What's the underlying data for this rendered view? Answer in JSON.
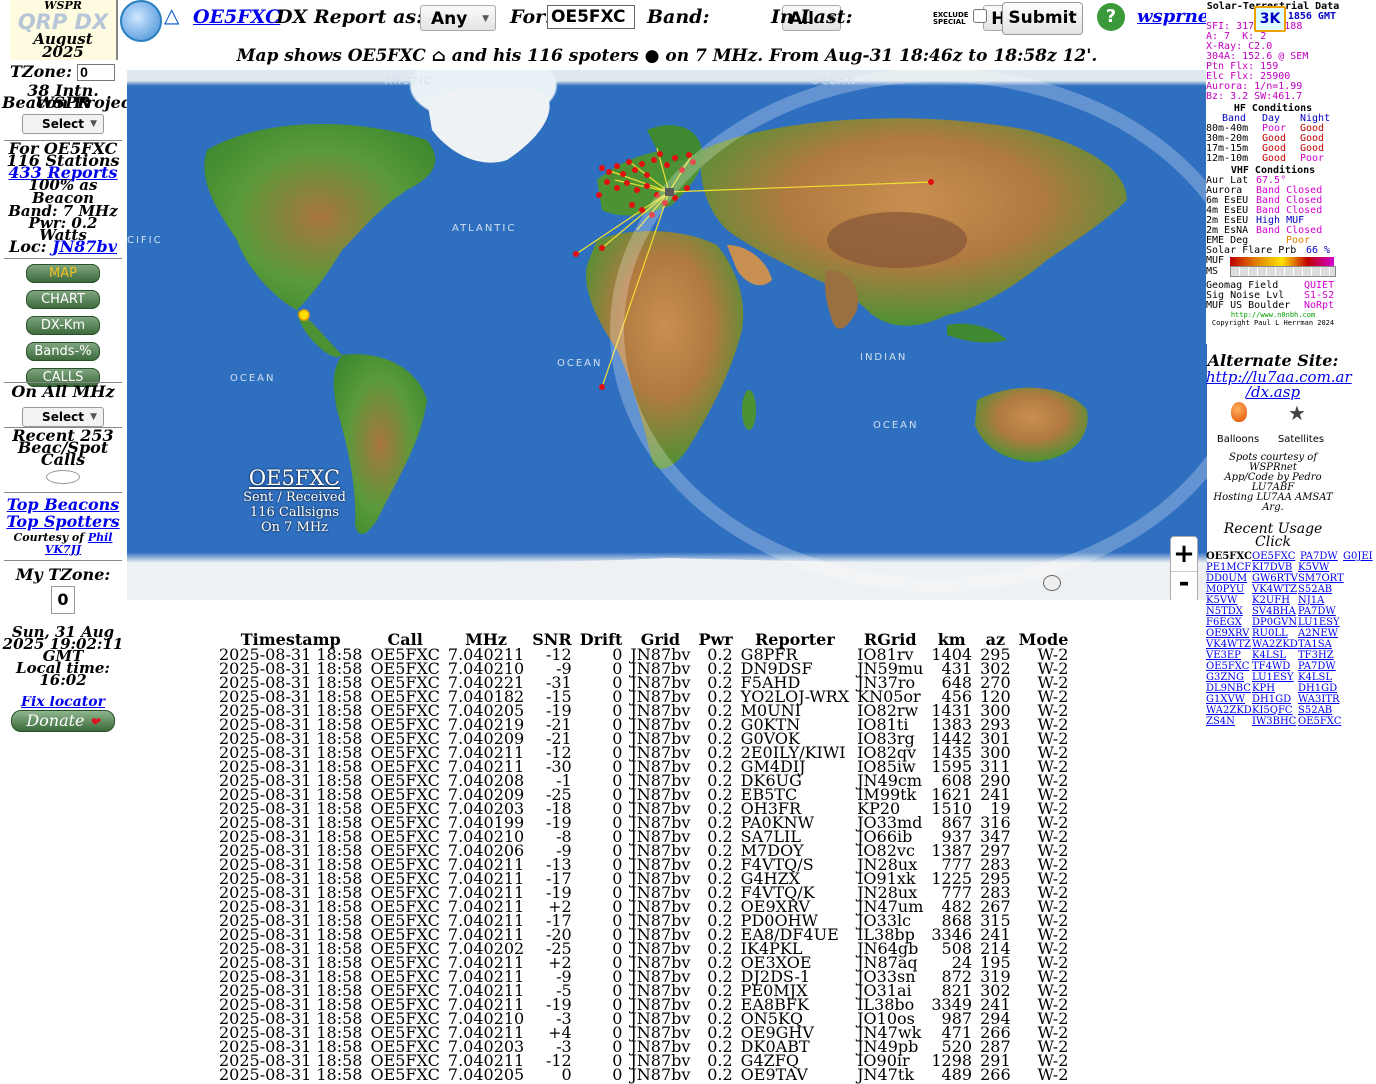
{
  "sidebar": {
    "wspr_label": "WSPR",
    "logo": "QRP DX",
    "month": "August",
    "year": "2025",
    "tzone_label": "TZone:",
    "tzone_value": "0",
    "beacon_line1": "38 Intn. WSPR",
    "beacon_line2": "Beacon Project",
    "select_label": "Select",
    "for_call": "For OE5FXC",
    "stations": "116 Stations",
    "reports": "433 Reports",
    "beacon_pct": "100% as",
    "beacon_word": "Beacon",
    "band": "Band: 7 MHz",
    "pwr": "Pwr: 0.2",
    "watts": "Watts",
    "loc_label": "Loc:",
    "loc_value": "JN87bv",
    "nav": [
      "MAP",
      "CHART",
      "DX-Km",
      "Bands-%",
      "CALLS"
    ],
    "on_all_mhz": "On All MHz",
    "select2_label": "Select",
    "recent_line1": "Recent 253",
    "recent_line2": "Beac/Spot",
    "recent_line3": "Calls",
    "top_beacons": "Top Beacons",
    "top_spotters": "Top Spotters",
    "courtesy": "Courtesy of",
    "phil": "Phil",
    "vk7ji": "VK7JJ",
    "my_tzone": "My TZone:",
    "my_tzone_value": "0",
    "date": "Sun, 31 Aug",
    "datetime": "2025 19:02:11",
    "gmt": "GMT",
    "local_time_label": "Local time:",
    "local_time": "16:02",
    "fix_locator": "Fix locator",
    "donate": "Donate"
  },
  "topbar": {
    "call_link": "OE5FXC",
    "dx_report_as": "DX Report as:",
    "as_value": "Any",
    "for_label": "For:",
    "for_value": "OE5FXC",
    "band_label": "Band:",
    "band_value": "All",
    "in_last_label": "In Last:",
    "in_last_value": "Hour",
    "exclude_label1": "EXCLUDE",
    "exclude_label2": "SPECIAL",
    "submit": "Submit",
    "help": "?",
    "wsprnet": "wsprnet.org",
    "k3": "3K"
  },
  "map": {
    "caption": "Map shows OE5FXC ⌂ and his 116 spoters ● on 7 MHz. From Aug-31 18:46z to 18:58z 12'.",
    "ocean_labels": [
      "ARCTIC",
      "OCEAN",
      "ATLANTIC",
      "OCEAN",
      "OCEAN",
      "INDIAN",
      "OCEAN",
      "CIFIC"
    ],
    "overlay_call": "OE5FXC",
    "overlay_line1": "Sent / Received",
    "overlay_line2": "116 Callsigns",
    "overlay_line3": "On 7 MHz",
    "zoom_in": "+",
    "zoom_out": "-"
  },
  "solar": {
    "title": "Solar-Terrestrial Data",
    "time": "1856 GMT",
    "sfi": "SFI: 317",
    "sn": "SN: 188",
    "a": "A: 7",
    "k": "K: 2",
    "xray": "X-Ray: C2.0",
    "he": "304A: 152.6 @ SEM",
    "ptn": "Ptn Flx: 159",
    "elc": "Elc Flx: 25900",
    "aurora": "Aurora: 1/n=1.99",
    "bz": "Bz: 3.2 SW:461.7",
    "hf_title": "HF Conditions",
    "hf_head": [
      "Band",
      "Day",
      "Night"
    ],
    "hf_rows": [
      [
        "80m-40m",
        "Poor",
        "Good"
      ],
      [
        "30m-20m",
        "Good",
        "Good"
      ],
      [
        "17m-15m",
        "Good",
        "Good"
      ],
      [
        "12m-10m",
        "Good",
        "Poor"
      ]
    ],
    "vhf_title": "VHF Conditions",
    "vhf_rows": [
      [
        "Aur Lat",
        "67.5°"
      ],
      [
        "Aurora",
        "Band Closed"
      ],
      [
        "6m EsEU",
        "Band Closed"
      ],
      [
        "4m EsEU",
        "Band Closed"
      ],
      [
        "2m EsEU",
        "High MUF"
      ],
      [
        "2m EsNA",
        "Band Closed"
      ]
    ],
    "eme": "EME Deg",
    "eme_val": "Poor",
    "flare": "Solar Flare Prb",
    "flare_val": "66 %",
    "muf": "MUF",
    "ms": "MS",
    "geomag": "Geomag Field",
    "geomag_val": "QUIET",
    "signoise": "Sig Noise Lvl",
    "signoise_val": "S1-S2",
    "mufus": "MUF US Boulder",
    "mufus_val": "NoRpt",
    "url": "http://www.n0nbh.com",
    "copyright": "Copyright Paul L Herrman 2024"
  },
  "right": {
    "alternate": "Alternate Site:",
    "alt_link1": "http://lu7aa.com.ar",
    "alt_link2": "/dx.asp",
    "balloons": "Balloons",
    "satellites": "Satellites",
    "spots_courtesy1": "Spots courtesy of",
    "spots_courtesy2": "WSPRnet",
    "app_code1": "App/Code by Pedro",
    "app_code2": "LU7ABF",
    "hosting": "Hosting LU7AA AMSAT Arg.",
    "recent_usage": "Recent Usage",
    "click": "Click",
    "recent_calls": [
      [
        "OE5FXC",
        "OE5FXC",
        "PA7DW",
        "G0JEI"
      ],
      [
        "PE1MCF",
        "KI7DVB",
        "K5VW"
      ],
      [
        "DD0UM",
        "GW6RTV",
        "SM7ORT"
      ],
      [
        "M0PYU",
        "VK4WTZ",
        "S52AB"
      ],
      [
        "K5VW",
        "K2UFH",
        "NJ1A"
      ],
      [
        "N5TDX",
        "SV4BHA",
        "PA7DW"
      ],
      [
        "F6EGX",
        "DP0GVN",
        "LU1ESY"
      ],
      [
        "OE9XRV",
        "RU0LL",
        "A2NEW"
      ],
      [
        "VK4WTZ",
        "WA2ZKD",
        "TA1SA"
      ],
      [
        "VE3EP",
        "K4LSL",
        "TF3HZ"
      ],
      [
        "OE5FXC",
        "TF4WD",
        "PA7DW"
      ],
      [
        "G3ZNG",
        "LU1ESY",
        "K4LSL"
      ],
      [
        "DL9NBC",
        "KPH",
        "DH1GD"
      ],
      [
        "G1XVW",
        "DH1GD",
        "WA3ITR"
      ],
      [
        "WA2ZKD",
        "KI5QFC",
        "S52AB"
      ],
      [
        "ZS4N",
        "IW3BHC",
        "OE5FXC"
      ]
    ]
  },
  "table": {
    "headers": [
      "Timestamp",
      "Call",
      "MHz",
      "SNR",
      "Drift",
      "Grid",
      "Pwr",
      "Reporter",
      "RGrid",
      "km",
      "az",
      "Mode"
    ],
    "rows": [
      [
        "2025-08-31 18:58",
        "OE5FXC",
        "7.040211",
        "-12",
        "0",
        "JN87bv",
        "0.2",
        "G8PFR",
        "IO81rv",
        "1404",
        "295",
        "W-2"
      ],
      [
        "2025-08-31 18:58",
        "OE5FXC",
        "7.040210",
        "-9",
        "0",
        "JN87bv",
        "0.2",
        "DN9DSF",
        "JN59mu",
        "431",
        "302",
        "W-2"
      ],
      [
        "2025-08-31 18:58",
        "OE5FXC",
        "7.040221",
        "-31",
        "0",
        "JN87bv",
        "0.2",
        "F5AHD",
        "JN37ro",
        "648",
        "270",
        "W-2"
      ],
      [
        "2025-08-31 18:58",
        "OE5FXC",
        "7.040182",
        "-15",
        "0",
        "JN87bv",
        "0.2",
        "YO2LOJ-WRX",
        "KN05or",
        "456",
        "120",
        "W-2"
      ],
      [
        "2025-08-31 18:58",
        "OE5FXC",
        "7.040205",
        "-19",
        "0",
        "JN87bv",
        "0.2",
        "M0UNI",
        "IO82rw",
        "1431",
        "300",
        "W-2"
      ],
      [
        "2025-08-31 18:58",
        "OE5FXC",
        "7.040219",
        "-21",
        "0",
        "JN87bv",
        "0.2",
        "G0KTN",
        "IO81ti",
        "1383",
        "293",
        "W-2"
      ],
      [
        "2025-08-31 18:58",
        "OE5FXC",
        "7.040209",
        "-21",
        "0",
        "JN87bv",
        "0.2",
        "G0VOK",
        "IO83rg",
        "1442",
        "301",
        "W-2"
      ],
      [
        "2025-08-31 18:58",
        "OE5FXC",
        "7.040211",
        "-12",
        "0",
        "JN87bv",
        "0.2",
        "2E0ILY/KIWI",
        "IO82qv",
        "1435",
        "300",
        "W-2"
      ],
      [
        "2025-08-31 18:58",
        "OE5FXC",
        "7.040211",
        "-30",
        "0",
        "JN87bv",
        "0.2",
        "GM4DIJ",
        "IO85iw",
        "1595",
        "311",
        "W-2"
      ],
      [
        "2025-08-31 18:58",
        "OE5FXC",
        "7.040208",
        "-1",
        "0",
        "JN87bv",
        "0.2",
        "DK6UG",
        "JN49cm",
        "608",
        "290",
        "W-2"
      ],
      [
        "2025-08-31 18:58",
        "OE5FXC",
        "7.040209",
        "-25",
        "0",
        "JN87bv",
        "0.2",
        "EB5TC",
        "IM99tk",
        "1621",
        "241",
        "W-2"
      ],
      [
        "2025-08-31 18:58",
        "OE5FXC",
        "7.040203",
        "-18",
        "0",
        "JN87bv",
        "0.2",
        "OH3FR",
        "KP20",
        "1510",
        "19",
        "W-2"
      ],
      [
        "2025-08-31 18:58",
        "OE5FXC",
        "7.040199",
        "-19",
        "0",
        "JN87bv",
        "0.2",
        "PA0KNW",
        "JO33md",
        "867",
        "316",
        "W-2"
      ],
      [
        "2025-08-31 18:58",
        "OE5FXC",
        "7.040210",
        "-8",
        "0",
        "JN87bv",
        "0.2",
        "SA7LIL",
        "JO66ib",
        "937",
        "347",
        "W-2"
      ],
      [
        "2025-08-31 18:58",
        "OE5FXC",
        "7.040206",
        "-9",
        "0",
        "JN87bv",
        "0.2",
        "M7DOY",
        "IO82vc",
        "1387",
        "297",
        "W-2"
      ],
      [
        "2025-08-31 18:58",
        "OE5FXC",
        "7.040211",
        "-13",
        "0",
        "JN87bv",
        "0.2",
        "F4VTQ/S",
        "JN28ux",
        "777",
        "283",
        "W-2"
      ],
      [
        "2025-08-31 18:58",
        "OE5FXC",
        "7.040211",
        "-17",
        "0",
        "JN87bv",
        "0.2",
        "G4HZX",
        "IO91xk",
        "1225",
        "295",
        "W-2"
      ],
      [
        "2025-08-31 18:58",
        "OE5FXC",
        "7.040211",
        "-19",
        "0",
        "JN87bv",
        "0.2",
        "F4VTQ/K",
        "JN28ux",
        "777",
        "283",
        "W-2"
      ],
      [
        "2025-08-31 18:58",
        "OE5FXC",
        "7.040211",
        "+2",
        "0",
        "JN87bv",
        "0.2",
        "OE9XRV",
        "JN47um",
        "482",
        "267",
        "W-2"
      ],
      [
        "2025-08-31 18:58",
        "OE5FXC",
        "7.040211",
        "-17",
        "0",
        "JN87bv",
        "0.2",
        "PD0OHW",
        "JO33lc",
        "868",
        "315",
        "W-2"
      ],
      [
        "2025-08-31 18:58",
        "OE5FXC",
        "7.040211",
        "-20",
        "0",
        "JN87bv",
        "0.2",
        "EA8/DF4UE",
        "IL38bp",
        "3346",
        "241",
        "W-2"
      ],
      [
        "2025-08-31 18:58",
        "OE5FXC",
        "7.040202",
        "-25",
        "0",
        "JN87bv",
        "0.2",
        "IK4PKL",
        "JN64gb",
        "508",
        "214",
        "W-2"
      ],
      [
        "2025-08-31 18:58",
        "OE5FXC",
        "7.040211",
        "+2",
        "0",
        "JN87bv",
        "0.2",
        "OE3XOE",
        "JN87aq",
        "24",
        "195",
        "W-2"
      ],
      [
        "2025-08-31 18:58",
        "OE5FXC",
        "7.040211",
        "-9",
        "0",
        "JN87bv",
        "0.2",
        "DJ2DS-1",
        "JO33sn",
        "872",
        "319",
        "W-2"
      ],
      [
        "2025-08-31 18:58",
        "OE5FXC",
        "7.040211",
        "-5",
        "0",
        "JN87bv",
        "0.2",
        "PE0MJX",
        "JO31ai",
        "821",
        "302",
        "W-2"
      ],
      [
        "2025-08-31 18:58",
        "OE5FXC",
        "7.040211",
        "-19",
        "0",
        "JN87bv",
        "0.2",
        "EA8BFK",
        "IL38bo",
        "3349",
        "241",
        "W-2"
      ],
      [
        "2025-08-31 18:58",
        "OE5FXC",
        "7.040210",
        "-3",
        "0",
        "JN87bv",
        "0.2",
        "ON5KQ",
        "JO10os",
        "987",
        "294",
        "W-2"
      ],
      [
        "2025-08-31 18:58",
        "OE5FXC",
        "7.040211",
        "+4",
        "0",
        "JN87bv",
        "0.2",
        "OE9GHV",
        "JN47wk",
        "471",
        "266",
        "W-2"
      ],
      [
        "2025-08-31 18:58",
        "OE5FXC",
        "7.040203",
        "-3",
        "0",
        "JN87bv",
        "0.2",
        "DK0ABT",
        "JN49pb",
        "520",
        "287",
        "W-2"
      ],
      [
        "2025-08-31 18:58",
        "OE5FXC",
        "7.040211",
        "-12",
        "0",
        "JN87bv",
        "0.2",
        "G4ZFQ",
        "IO90ir",
        "1298",
        "291",
        "W-2"
      ],
      [
        "2025-08-31 18:58",
        "OE5FXC",
        "7.040205",
        "0",
        "0",
        "JN87bv",
        "0.2",
        "OE9TAV",
        "JN47tk",
        "489",
        "266",
        "W-2"
      ]
    ]
  }
}
